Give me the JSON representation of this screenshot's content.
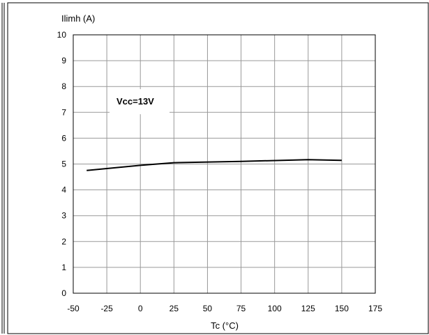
{
  "chart_data": {
    "type": "line",
    "title": "",
    "xlabel": "Tc (°C)",
    "ylabel": "Ilimh (A)",
    "xlim": [
      -50,
      175
    ],
    "ylim": [
      0,
      10
    ],
    "x_ticks": [
      "-50",
      "-25",
      "0",
      "25",
      "50",
      "75",
      "100",
      "125",
      "150",
      "175"
    ],
    "y_ticks": [
      "0",
      "1",
      "2",
      "3",
      "4",
      "5",
      "6",
      "7",
      "8",
      "9",
      "10"
    ],
    "grid": true,
    "annotation": "Vcc=13V",
    "series": [
      {
        "x": [
          -40,
          0,
          25,
          75,
          125,
          150
        ],
        "y": [
          4.75,
          4.95,
          5.05,
          5.1,
          5.17,
          5.14
        ]
      }
    ],
    "colors": {
      "line": "#000000",
      "grid": "#999999",
      "axis": "#000000"
    }
  }
}
